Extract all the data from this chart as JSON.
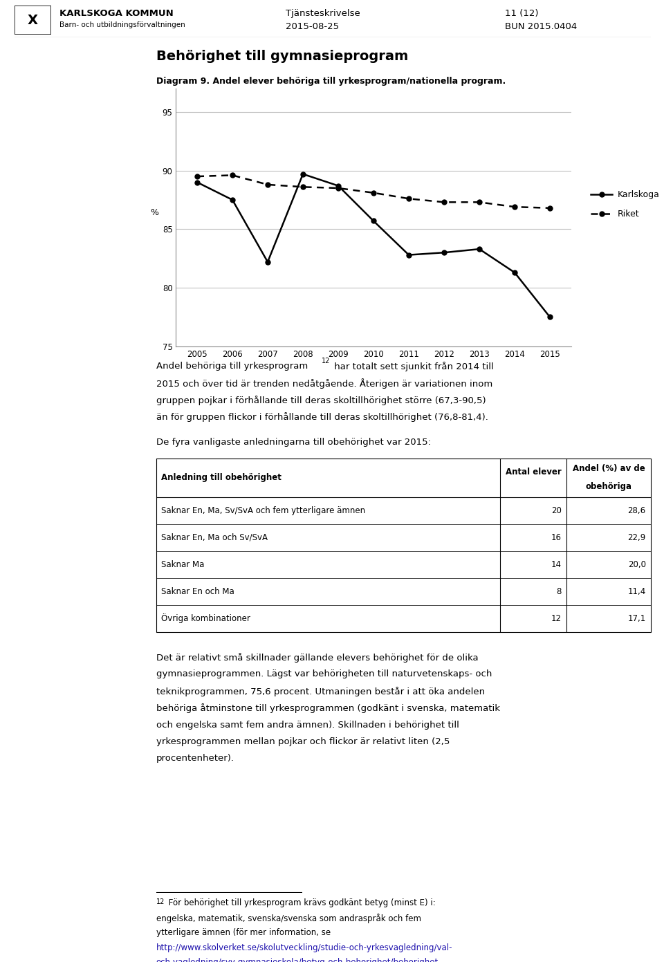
{
  "page_title_left1": "KARLSKOGA KOMMUN",
  "page_title_left2": "Barn- och utbildningsförvaltningen",
  "page_header_center1": "Tjänsteskrivelse",
  "page_header_center2": "2015-08-25",
  "page_header_right1": "11 (12)",
  "page_header_right2": "BUN 2015.0404",
  "section_title": "Behörighet till gymnasieprogram",
  "diagram_caption": "Diagram 9. Andel elever behöriga till yrkesprogram/nationella program.",
  "years": [
    2005,
    2006,
    2007,
    2008,
    2009,
    2010,
    2011,
    2012,
    2013,
    2014,
    2015
  ],
  "karlskoga": [
    89.0,
    87.5,
    82.2,
    89.7,
    88.7,
    85.7,
    82.8,
    83.0,
    83.3,
    81.3,
    77.5
  ],
  "riket": [
    89.5,
    89.6,
    88.8,
    88.6,
    88.5,
    88.1,
    87.6,
    87.3,
    87.3,
    86.9,
    86.8
  ],
  "ylabel": "%",
  "ylim": [
    75,
    97
  ],
  "yticks": [
    75,
    80,
    85,
    90,
    95
  ],
  "legend_karlskoga": "Karlskoga",
  "legend_riket": "Riket",
  "table_rows": [
    [
      "Saknar En, Ma, Sv/SvA och fem ytterligare ämnen",
      "20",
      "28,6"
    ],
    [
      "Saknar En, Ma och Sv/SvA",
      "16",
      "22,9"
    ],
    [
      "Saknar Ma",
      "14",
      "20,0"
    ],
    [
      "Saknar En och Ma",
      "8",
      "11,4"
    ],
    [
      "Övriga kombinationer",
      "12",
      "17,1"
    ]
  ],
  "background_color": "#ffffff",
  "grid_color": "#c0c0c0"
}
